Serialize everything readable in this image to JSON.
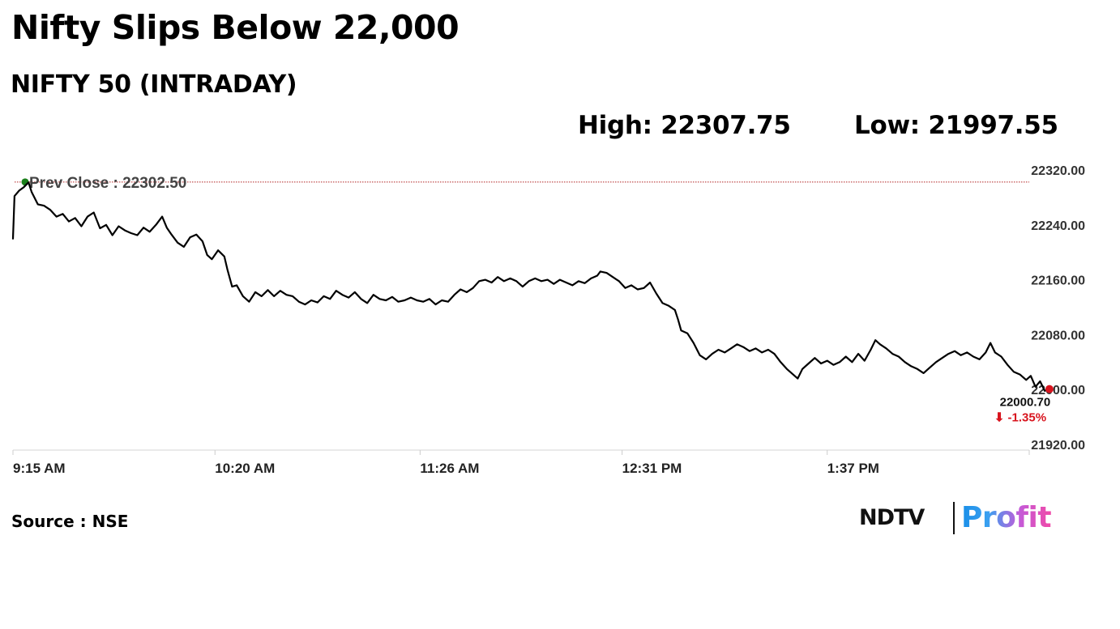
{
  "header": {
    "title": "Nifty Slips Below 22,000",
    "subtitle": "NIFTY 50 (INTRADAY)",
    "high_text": "High: 22307.75",
    "low_text": "Low: 21997.55"
  },
  "footer": {
    "source": "Source : NSE",
    "brand_ndtv": "NDTV",
    "brand_profit": "Profit"
  },
  "chart_data": {
    "type": "line",
    "series_color": "#000000",
    "y_ticks": [
      "22320.00",
      "22240.00",
      "22160.00",
      "22080.00",
      "22000.00",
      "21920.00"
    ],
    "y_tick_values": [
      22320,
      22240,
      22160,
      22080,
      22000,
      21920
    ],
    "ylim": [
      21920,
      22320
    ],
    "x_ticks": [
      "9:15 AM",
      "10:20 AM",
      "11:26 AM",
      "12:31 PM",
      "1:37 PM"
    ],
    "x_tick_minutes": [
      0,
      65,
      131,
      196,
      262
    ],
    "xlim_minutes": [
      0,
      327
    ],
    "grid": false,
    "prev_close": {
      "label": "Prev Close : 22302.50",
      "value": 22302.5,
      "line_color": "#b22222",
      "marker_color": "#1a7f1a"
    },
    "last": {
      "value_label": "22000.70",
      "change_label": "⬇ -1.35%",
      "value": 22000.7,
      "marker_color": "#d8141e"
    },
    "points": [
      [
        0,
        22220
      ],
      [
        0.5,
        22282
      ],
      [
        2,
        22290
      ],
      [
        3.5,
        22295
      ],
      [
        5,
        22302
      ],
      [
        6,
        22288
      ],
      [
        8,
        22270
      ],
      [
        10,
        22268
      ],
      [
        12,
        22262
      ],
      [
        14,
        22252
      ],
      [
        16,
        22256
      ],
      [
        18,
        22245
      ],
      [
        20,
        22250
      ],
      [
        22,
        22238
      ],
      [
        24,
        22252
      ],
      [
        26,
        22258
      ],
      [
        28,
        22235
      ],
      [
        30,
        22240
      ],
      [
        32,
        22225
      ],
      [
        34,
        22238
      ],
      [
        36,
        22232
      ],
      [
        38,
        22228
      ],
      [
        40,
        22225
      ],
      [
        42,
        22236
      ],
      [
        44,
        22230
      ],
      [
        46,
        22240
      ],
      [
        48,
        22252
      ],
      [
        49.5,
        22236
      ],
      [
        51,
        22226
      ],
      [
        53,
        22214
      ],
      [
        55,
        22208
      ],
      [
        57,
        22222
      ],
      [
        59,
        22226
      ],
      [
        61,
        22216
      ],
      [
        62.5,
        22196
      ],
      [
        64,
        22190
      ],
      [
        66,
        22203
      ],
      [
        68,
        22194
      ],
      [
        69,
        22175
      ],
      [
        70.5,
        22150
      ],
      [
        72,
        22152
      ],
      [
        74,
        22136
      ],
      [
        76,
        22128
      ],
      [
        78,
        22142
      ],
      [
        80,
        22136
      ],
      [
        82,
        22145
      ],
      [
        84,
        22136
      ],
      [
        86,
        22144
      ],
      [
        88,
        22138
      ],
      [
        90,
        22136
      ],
      [
        92,
        22128
      ],
      [
        94,
        22124
      ],
      [
        96,
        22130
      ],
      [
        98,
        22127
      ],
      [
        100,
        22136
      ],
      [
        102,
        22132
      ],
      [
        104,
        22144
      ],
      [
        106,
        22138
      ],
      [
        108,
        22134
      ],
      [
        110,
        22142
      ],
      [
        112,
        22132
      ],
      [
        114,
        22126
      ],
      [
        116,
        22138
      ],
      [
        118,
        22132
      ],
      [
        120,
        22130
      ],
      [
        122,
        22135
      ],
      [
        124,
        22128
      ],
      [
        126,
        22130
      ],
      [
        128,
        22134
      ],
      [
        130,
        22130
      ],
      [
        132,
        22128
      ],
      [
        134,
        22132
      ],
      [
        136,
        22124
      ],
      [
        138,
        22130
      ],
      [
        140,
        22128
      ],
      [
        142,
        22138
      ],
      [
        144,
        22146
      ],
      [
        146,
        22142
      ],
      [
        148,
        22148
      ],
      [
        150,
        22158
      ],
      [
        152,
        22160
      ],
      [
        154,
        22156
      ],
      [
        156,
        22164
      ],
      [
        158,
        22158
      ],
      [
        160,
        22162
      ],
      [
        162,
        22158
      ],
      [
        164,
        22150
      ],
      [
        166,
        22158
      ],
      [
        168,
        22162
      ],
      [
        170,
        22158
      ],
      [
        172,
        22160
      ],
      [
        174,
        22154
      ],
      [
        176,
        22160
      ],
      [
        178,
        22156
      ],
      [
        180,
        22152
      ],
      [
        182,
        22158
      ],
      [
        184,
        22155
      ],
      [
        186,
        22162
      ],
      [
        188,
        22166
      ],
      [
        189,
        22172
      ],
      [
        191,
        22170
      ],
      [
        193,
        22164
      ],
      [
        195,
        22158
      ],
      [
        197,
        22148
      ],
      [
        199,
        22152
      ],
      [
        201,
        22146
      ],
      [
        203,
        22148
      ],
      [
        205,
        22156
      ],
      [
        207,
        22140
      ],
      [
        209,
        22126
      ],
      [
        211,
        22122
      ],
      [
        213,
        22116
      ],
      [
        214,
        22102
      ],
      [
        215,
        22086
      ],
      [
        217,
        22082
      ],
      [
        219,
        22068
      ],
      [
        221,
        22050
      ],
      [
        223,
        22044
      ],
      [
        225,
        22052
      ],
      [
        227,
        22058
      ],
      [
        229,
        22054
      ],
      [
        231,
        22060
      ],
      [
        233,
        22066
      ],
      [
        235,
        22062
      ],
      [
        237,
        22056
      ],
      [
        239,
        22060
      ],
      [
        241,
        22054
      ],
      [
        243,
        22058
      ],
      [
        245,
        22052
      ],
      [
        247,
        22040
      ],
      [
        249,
        22030
      ],
      [
        251,
        22022
      ],
      [
        252.5,
        22016
      ],
      [
        254,
        22030
      ],
      [
        256,
        22038
      ],
      [
        258,
        22046
      ],
      [
        260,
        22038
      ],
      [
        262,
        22042
      ],
      [
        264,
        22036
      ],
      [
        266,
        22040
      ],
      [
        268,
        22048
      ],
      [
        270,
        22040
      ],
      [
        272,
        22052
      ],
      [
        274,
        22042
      ],
      [
        276,
        22058
      ],
      [
        277.5,
        22072
      ],
      [
        279,
        22066
      ],
      [
        281,
        22060
      ],
      [
        283,
        22052
      ],
      [
        285,
        22048
      ],
      [
        287,
        22040
      ],
      [
        289,
        22034
      ],
      [
        291,
        22030
      ],
      [
        293,
        22024
      ],
      [
        295,
        22032
      ],
      [
        297,
        22040
      ],
      [
        299,
        22046
      ],
      [
        301,
        22052
      ],
      [
        303,
        22056
      ],
      [
        305,
        22050
      ],
      [
        307,
        22054
      ],
      [
        309,
        22048
      ],
      [
        311,
        22044
      ],
      [
        313,
        22054
      ],
      [
        314.5,
        22068
      ],
      [
        316,
        22054
      ],
      [
        318,
        22048
      ],
      [
        320,
        22036
      ],
      [
        322,
        22026
      ],
      [
        324,
        22022
      ],
      [
        326,
        22014
      ],
      [
        327.5,
        22020
      ],
      [
        329,
        22004
      ],
      [
        330.5,
        22012
      ],
      [
        332,
        21998
      ],
      [
        333.5,
        22000.7
      ]
    ]
  }
}
